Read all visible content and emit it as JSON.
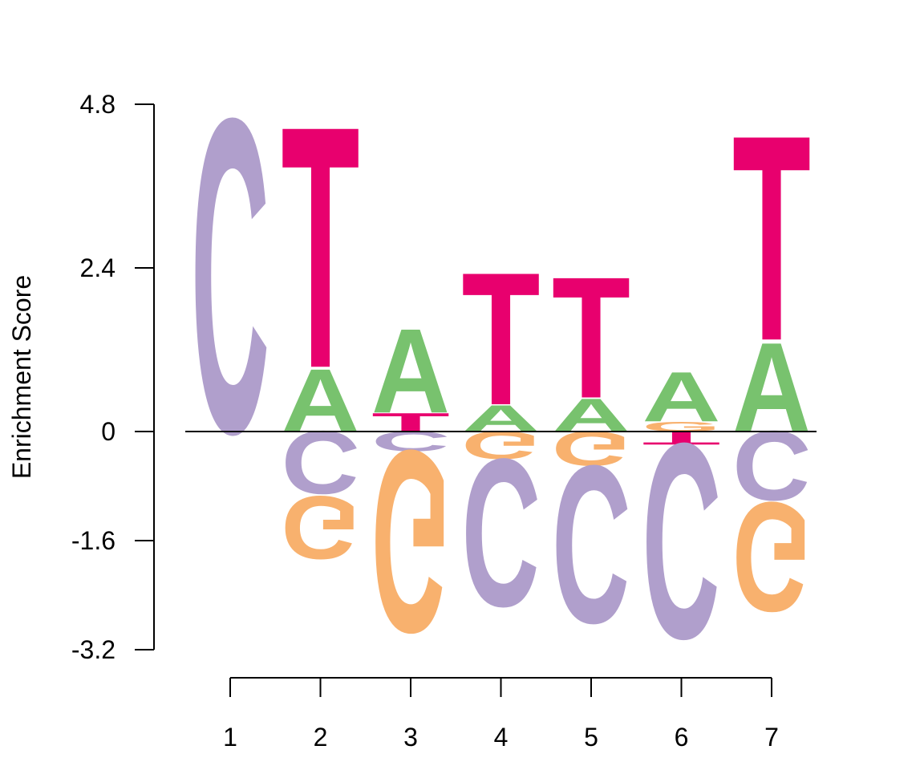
{
  "chart_data": {
    "type": "sequence-logo",
    "ylabel": "Enrichment Score",
    "xlabel": "",
    "y_ticks": [
      "4.8",
      "2.4",
      "0",
      "-1.6",
      "-3.2"
    ],
    "y_tick_values": [
      4.8,
      2.4,
      0,
      -1.6,
      -3.2
    ],
    "ylim": [
      -3.2,
      4.8
    ],
    "positions": [
      "1",
      "2",
      "3",
      "4",
      "5",
      "6",
      "7"
    ],
    "colors": {
      "A": "#78c26e",
      "C": "#b09fcc",
      "G": "#f8b16e",
      "T": "#e8006e"
    },
    "stacks": [
      {
        "position": "1",
        "letters": [
          {
            "letter": "C",
            "from": 0,
            "to": 4.75
          }
        ]
      },
      {
        "position": "2",
        "letters": [
          {
            "letter": "A",
            "from": 0,
            "to": 0.95
          },
          {
            "letter": "T",
            "from": 0.95,
            "to": 4.6
          },
          {
            "letter": "C",
            "from": 0,
            "to": -0.95
          },
          {
            "letter": "G",
            "from": -0.95,
            "to": -1.9
          }
        ]
      },
      {
        "position": "3",
        "letters": [
          {
            "letter": "T",
            "from": 0,
            "to": 0.28
          },
          {
            "letter": "A",
            "from": 0.28,
            "to": 1.55
          },
          {
            "letter": "C",
            "from": 0,
            "to": -0.3
          },
          {
            "letter": "G",
            "from": -0.3,
            "to": -3.05
          }
        ]
      },
      {
        "position": "4",
        "letters": [
          {
            "letter": "A",
            "from": 0,
            "to": 0.4
          },
          {
            "letter": "T",
            "from": 0.4,
            "to": 2.4
          },
          {
            "letter": "G",
            "from": 0,
            "to": -0.42
          },
          {
            "letter": "C",
            "from": -0.42,
            "to": -2.65
          }
        ]
      },
      {
        "position": "5",
        "letters": [
          {
            "letter": "A",
            "from": 0,
            "to": 0.5
          },
          {
            "letter": "T",
            "from": 0.5,
            "to": 2.33
          },
          {
            "letter": "G",
            "from": 0,
            "to": -0.52
          },
          {
            "letter": "C",
            "from": -0.52,
            "to": -2.9
          }
        ]
      },
      {
        "position": "6",
        "letters": [
          {
            "letter": "G",
            "from": 0,
            "to": 0.15
          },
          {
            "letter": "A",
            "from": 0.15,
            "to": 0.9
          },
          {
            "letter": "T",
            "from": 0,
            "to": -0.2
          },
          {
            "letter": "C",
            "from": -0.2,
            "to": -3.15
          }
        ]
      },
      {
        "position": "7",
        "letters": [
          {
            "letter": "A",
            "from": 0,
            "to": 1.35
          },
          {
            "letter": "T",
            "from": 1.35,
            "to": 4.45
          },
          {
            "letter": "C",
            "from": 0,
            "to": -1.05
          },
          {
            "letter": "G",
            "from": -1.05,
            "to": -2.7
          }
        ]
      }
    ]
  }
}
